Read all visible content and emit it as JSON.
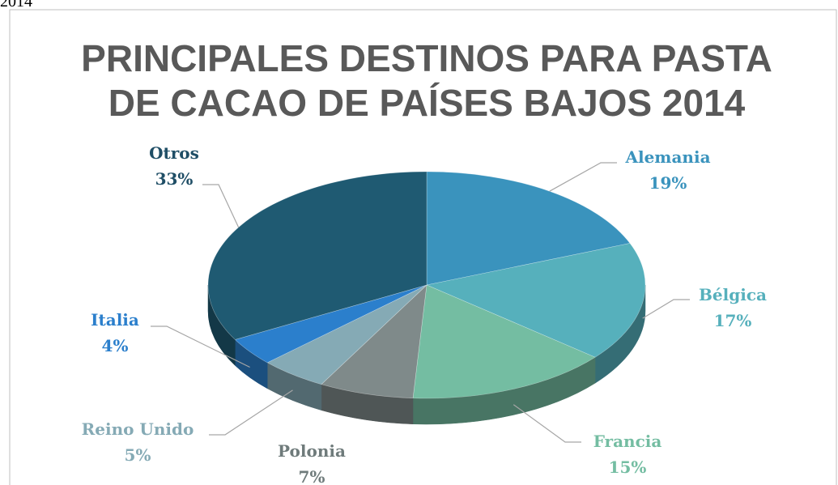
{
  "header": {
    "text": "2014"
  },
  "chart_data": {
    "type": "pie",
    "title": [
      "PRINCIPALES DESTINOS PARA PASTA",
      "DE CACAO DE PAÍSES BAJOS 2014"
    ],
    "categories": [
      "Alemania",
      "Bélgica",
      "Francia",
      "Polonia",
      "Reino Unido",
      "Italia",
      "Otros"
    ],
    "values": [
      19,
      17,
      15,
      7,
      5,
      4,
      33
    ],
    "value_labels": [
      "19%",
      "17%",
      "15%",
      "7%",
      "5%",
      "4%",
      "33%"
    ],
    "colors": [
      "#3a93bd",
      "#56b0bc",
      "#74bda2",
      "#7f8a8a",
      "#85aab5",
      "#2b7fcc",
      "#1f5a72"
    ],
    "label_colors": [
      "#3a93bd",
      "#56b0bc",
      "#74bda2",
      "#6f7b7b",
      "#85aab5",
      "#2b7fcc",
      "#1f4e66"
    ]
  }
}
